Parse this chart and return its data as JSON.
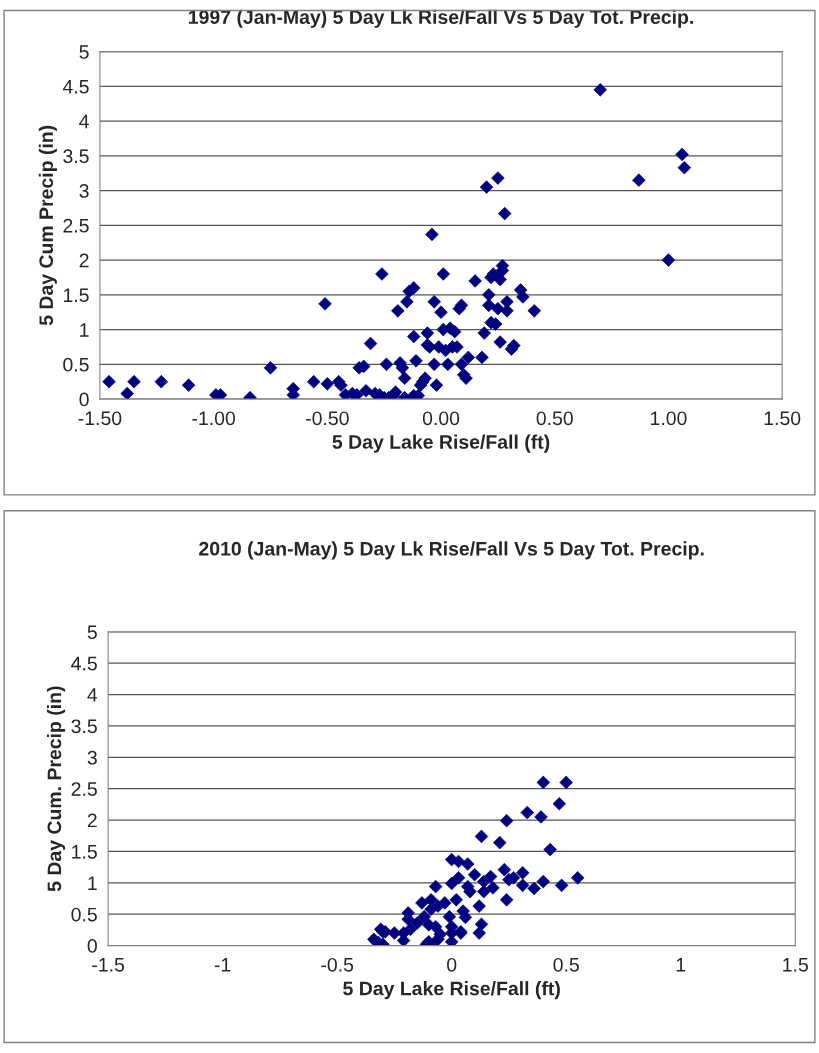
{
  "chart_data": [
    {
      "type": "scatter",
      "title": "1997 (Jan-May) 5 Day Lk Rise/Fall Vs 5 Day Tot. Precip.",
      "xlabel": "5 Day Lake Rise/Fall (ft)",
      "ylabel": "5 Day Cum Precip (in)",
      "marker": "diamond",
      "grid": "y",
      "xlim": [
        -1.5,
        1.5
      ],
      "ylim": [
        0,
        5
      ],
      "xticks": [
        {
          "value": -1.5,
          "label": "-1.50"
        },
        {
          "value": -1,
          "label": "-1.00"
        },
        {
          "value": -0.5,
          "label": "-0.50"
        },
        {
          "value": 0,
          "label": "0.00"
        },
        {
          "value": 0.5,
          "label": "0.50"
        },
        {
          "value": 1,
          "label": "1.00"
        },
        {
          "value": 1.5,
          "label": "1.50"
        }
      ],
      "yticks": [
        0,
        0.5,
        1,
        1.5,
        2,
        2.5,
        3,
        3.5,
        4,
        4.5,
        5
      ],
      "series": [
        {
          "color": "#000080",
          "x": [
            -1.46,
            -1.38,
            -1.35,
            -1.23,
            -1.11,
            -0.99,
            -0.97,
            -0.84,
            -0.75,
            -0.65,
            -0.65,
            -0.56,
            -0.51,
            -0.5,
            -0.45,
            -0.44,
            -0.42,
            -0.39,
            -0.37,
            -0.36,
            -0.34,
            -0.33,
            -0.31,
            -0.29,
            -0.26,
            -0.27,
            -0.25,
            -0.24,
            -0.23,
            -0.21,
            -0.2,
            -0.19,
            -0.18,
            -0.17,
            -0.16,
            -0.16,
            -0.15,
            -0.14,
            -0.12,
            -0.12,
            -0.12,
            -0.11,
            -0.1,
            -0.09,
            -0.08,
            -0.07,
            -0.06,
            -0.06,
            -0.05,
            -0.04,
            -0.03,
            -0.03,
            -0.02,
            -0.01,
            0.0,
            0.01,
            0.01,
            0.02,
            0.03,
            0.04,
            0.05,
            0.06,
            0.07,
            0.08,
            0.09,
            0.09,
            0.1,
            0.11,
            0.12,
            0.15,
            0.18,
            0.19,
            0.2,
            0.21,
            0.21,
            0.22,
            0.22,
            0.23,
            0.24,
            0.25,
            0.25,
            0.26,
            0.26,
            0.27,
            0.27,
            0.28,
            0.29,
            0.29,
            0.31,
            0.32,
            0.35,
            0.36,
            0.41,
            0.7,
            0.87,
            1.0,
            1.06,
            1.07
          ],
          "values": [
            0.25,
            0.08,
            0.25,
            0.25,
            0.2,
            0.06,
            0.06,
            0.02,
            0.45,
            0.15,
            0.06,
            0.25,
            1.37,
            0.22,
            0.25,
            0.2,
            0.06,
            0.08,
            0.06,
            0.45,
            0.47,
            0.12,
            0.8,
            0.08,
            1.8,
            0.06,
            0.02,
            0.5,
            0.02,
            0.05,
            0.1,
            1.27,
            0.52,
            0.45,
            0.3,
            0.02,
            1.4,
            1.55,
            1.6,
            0.9,
            0.05,
            0.55,
            0.05,
            0.2,
            0.25,
            0.3,
            0.95,
            0.78,
            0.75,
            2.37,
            1.4,
            0.5,
            0.2,
            0.75,
            1.25,
            1.8,
            1.0,
            0.7,
            0.5,
            1.02,
            0.75,
            0.97,
            0.75,
            1.3,
            1.35,
            0.5,
            0.35,
            0.3,
            0.6,
            1.7,
            0.6,
            0.95,
            3.05,
            1.5,
            1.35,
            1.75,
            1.1,
            1.8,
            1.08,
            3.18,
            1.3,
            0.82,
            1.72,
            1.85,
            1.92,
            2.67,
            1.4,
            1.27,
            0.72,
            0.77,
            1.57,
            1.47,
            1.27,
            4.45,
            3.15,
            2.0,
            3.52,
            3.33
          ]
        }
      ]
    },
    {
      "type": "scatter",
      "title": "2010 (Jan-May) 5 Day Lk Rise/Fall Vs 5 Day Tot. Precip.",
      "xlabel": "5 Day Lake Rise/Fall (ft)",
      "ylabel": "5 Day Cum. Precip (in)",
      "marker": "diamond",
      "grid": "y",
      "xlim": [
        -1.5,
        1.5
      ],
      "ylim": [
        0,
        5
      ],
      "xticks": [
        -1.5,
        -1,
        -0.5,
        0,
        0.5,
        1,
        1.5
      ],
      "yticks": [
        0,
        0.5,
        1,
        1.5,
        2,
        2.5,
        3,
        3.5,
        4,
        4.5,
        5
      ],
      "series": [
        {
          "color": "#000080",
          "x": [
            0.4,
            0.5,
            0.47,
            0.33,
            0.39,
            0.24,
            0.13,
            0.21,
            0.43,
            0.55,
            0.48,
            0.4,
            0.36,
            0.31,
            0.31,
            0.24,
            0.23,
            0.25,
            0.27,
            0.17,
            0.14,
            0.1,
            0.18,
            0.14,
            0.0,
            0.03,
            0.07,
            0.03,
            0.0,
            0.07,
            0.08,
            0.02,
            -0.07,
            0.12,
            0.13,
            0.12,
            0.05,
            0.06,
            0.04,
            0.0,
            -0.03,
            -0.06,
            -0.09,
            -0.13,
            -0.09,
            -0.12,
            -0.01,
            0.0,
            -0.05,
            -0.07,
            -0.1,
            -0.15,
            -0.19,
            -0.19,
            -0.18,
            -0.21,
            -0.21,
            -0.25,
            -0.29,
            -0.31,
            -0.32,
            -0.3,
            -0.1,
            -0.11,
            -0.09,
            -0.06,
            0.0,
            0.04,
            -0.34,
            -0.3
          ],
          "values": [
            2.6,
            2.6,
            2.26,
            2.12,
            2.05,
            1.99,
            1.74,
            1.64,
            1.53,
            1.08,
            0.96,
            1.02,
            0.91,
            0.96,
            1.16,
            0.73,
            1.21,
            1.05,
            1.08,
            1.1,
            1.02,
            1.13,
            0.92,
            0.86,
            1.37,
            1.34,
            1.3,
            1.08,
            0.99,
            0.94,
            0.86,
            0.73,
            0.94,
            0.63,
            0.34,
            0.2,
            0.55,
            0.45,
            0.22,
            0.3,
            0.68,
            0.63,
            0.73,
            0.68,
            0.58,
            0.46,
            0.46,
            0.2,
            0.18,
            0.3,
            0.33,
            0.36,
            0.52,
            0.42,
            0.26,
            0.2,
            0.08,
            0.2,
            0.22,
            0.26,
            0.05,
            0.02,
            0.06,
            0.02,
            0.0,
            0.1,
            0.06,
            0.2,
            0.1,
            0.22
          ]
        }
      ]
    }
  ]
}
